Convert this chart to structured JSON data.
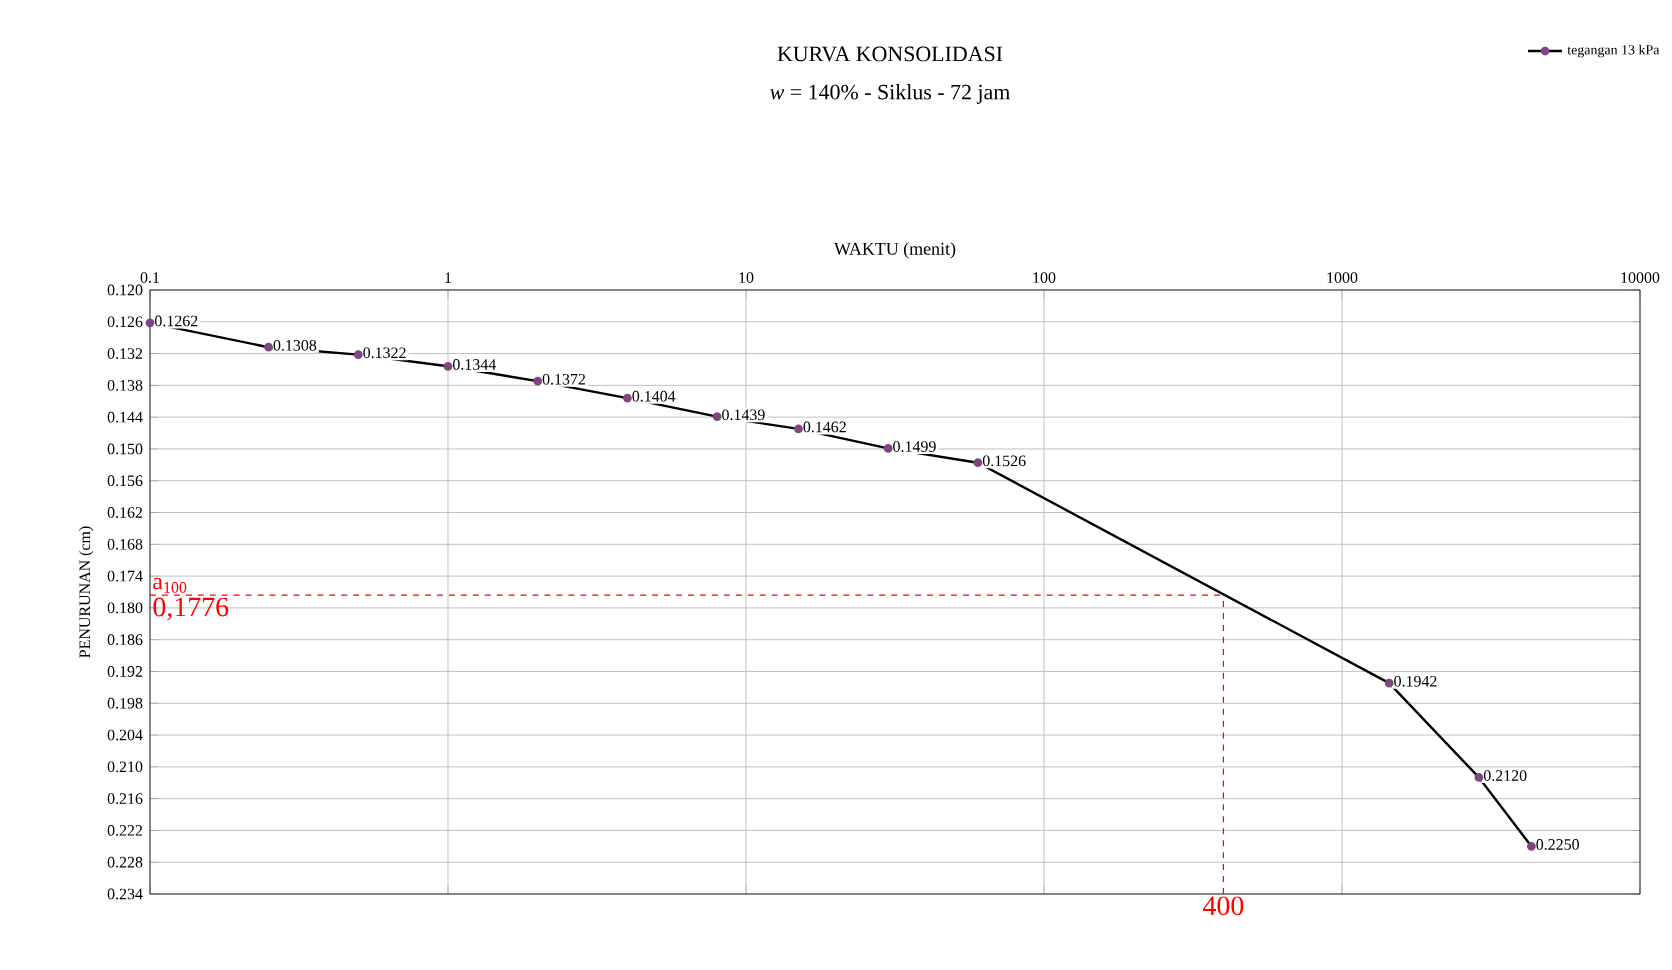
{
  "chart_data": {
    "type": "line",
    "title": "KURVA KONSOLIDASI",
    "subtitle": "*w* = 140% - Siklus - 72 jam",
    "xlabel": "WAKTU  (menit)",
    "ylabel": "PENURUNAN (cm)",
    "log": "x",
    "grid": true,
    "legend": "top right",
    "marker": "circle",
    "line_style": "solid",
    "xlim": [
      0.1,
      10000
    ],
    "xticks": [
      0.1,
      1,
      10,
      100,
      1000,
      10000
    ],
    "ylim": [
      0.234,
      0.12
    ],
    "yticks": [
      {
        "value": 0.12,
        "label": "0.120"
      },
      {
        "value": 0.126,
        "label": "0.126"
      },
      {
        "value": 0.132,
        "label": "0.132"
      },
      {
        "value": 0.138,
        "label": "0.138"
      },
      {
        "value": 0.144,
        "label": "0.144"
      },
      {
        "value": 0.15,
        "label": "0.150"
      },
      {
        "value": 0.156,
        "label": "0.156"
      },
      {
        "value": 0.162,
        "label": "0.162"
      },
      {
        "value": 0.168,
        "label": "0.168"
      },
      {
        "value": 0.174,
        "label": "0.174"
      },
      {
        "value": 0.18,
        "label": "0.180"
      },
      {
        "value": 0.186,
        "label": "0.186"
      },
      {
        "value": 0.192,
        "label": "0.192"
      },
      {
        "value": 0.198,
        "label": "0.198"
      },
      {
        "value": 0.204,
        "label": "0.204"
      },
      {
        "value": 0.21,
        "label": "0.210"
      },
      {
        "value": 0.216,
        "label": "0.216"
      },
      {
        "value": 0.222,
        "label": "0.222"
      },
      {
        "value": 0.228,
        "label": "0.228"
      },
      {
        "value": 0.234,
        "label": "0.234"
      }
    ],
    "x": [
      0.1,
      0.25,
      0.5,
      1,
      2,
      4,
      8,
      15,
      30,
      60,
      1440,
      2880,
      4320
    ],
    "series": [
      {
        "name": "tegangan 13 kPa",
        "color": "#000000",
        "values": [
          0.1262,
          0.1308,
          0.1322,
          0.1344,
          0.1372,
          0.1404,
          0.1439,
          0.1462,
          0.1499,
          0.1526,
          0.1942,
          0.212,
          0.225
        ],
        "value_labels": [
          "0.1262",
          "0.1308",
          "0.1322",
          "0.1344",
          "0.1372",
          "0.1404",
          "0.1439",
          "0.1462",
          "0.1499",
          "0.1526",
          "0.1942",
          "0.2120",
          "0.2250"
        ]
      }
    ],
    "ref_lines": [
      {
        "axis": "y",
        "value": 0.1776,
        "label": "0,1776",
        "color": "#ff0000",
        "line_style": "dashed"
      },
      {
        "axis": "x",
        "value": 400,
        "label": "400",
        "color": "#ff0000",
        "line_style": "dashed"
      }
    ],
    "annotations": [
      {
        "text": "a$_{100}$",
        "x": 0.1,
        "y": 0.1776
      }
    ]
  }
}
